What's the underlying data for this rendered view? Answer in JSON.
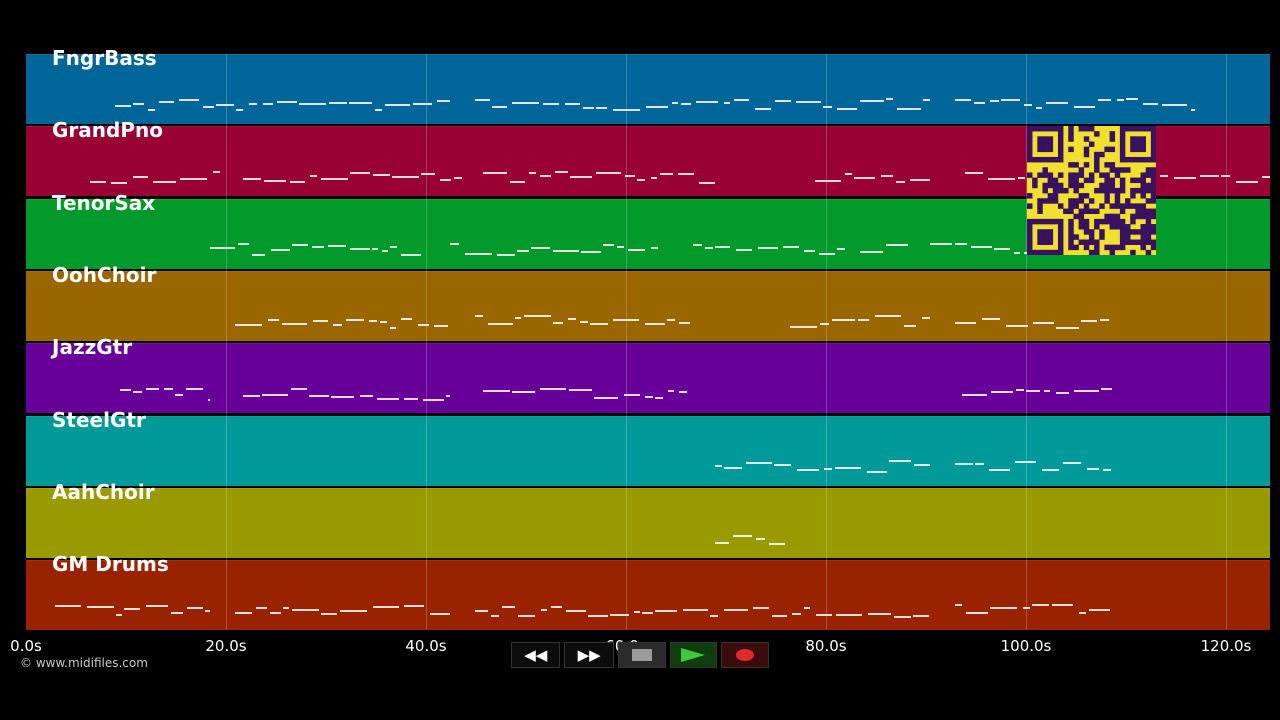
{
  "tracks": [
    {
      "name": "FngrBass",
      "color": "#00669a"
    },
    {
      "name": "GrandPno",
      "color": "#990033"
    },
    {
      "name": "TenorSax",
      "color": "#00992a"
    },
    {
      "name": "OohChoir",
      "color": "#996600"
    },
    {
      "name": "JazzGtr",
      "color": "#660099"
    },
    {
      "name": "SteelGtr",
      "color": "#00999a"
    },
    {
      "name": "AahChoir",
      "color": "#999900"
    },
    {
      "name": "GM Drums",
      "color": "#992200"
    }
  ],
  "timeline": {
    "ticks": [
      "0.0s",
      "20.0s",
      "40.0s",
      "60.0s",
      "80.0s",
      "100.0s",
      "120.0s"
    ]
  },
  "copyright": "© www.midifiles.com",
  "transport": {
    "rewind_label": "◀◀",
    "forward_label": "▶▶",
    "stop_icon": "stop-icon",
    "play_icon": "play-icon",
    "record_icon": "record-icon",
    "play_color": "#3ec83e",
    "record_color": "#e0282e"
  },
  "qr": {
    "color": "#f0e030",
    "dark": "#3a1060"
  }
}
